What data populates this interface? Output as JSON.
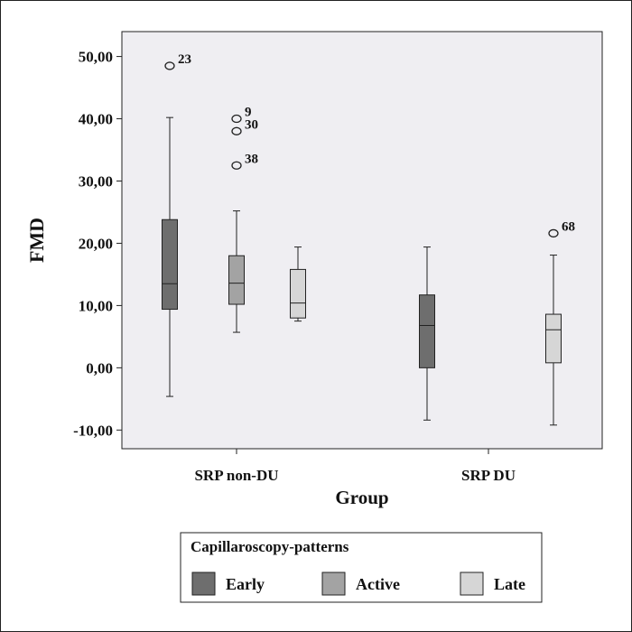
{
  "chart_data": {
    "type": "boxplot",
    "ylabel": "FMD",
    "xlabel": "Group",
    "ylim": [
      -13,
      54
    ],
    "yticks": [
      -10,
      0,
      10,
      20,
      30,
      40,
      50
    ],
    "ytick_labels": [
      "-10,00",
      "0,00",
      "10,00",
      "20,00",
      "30,00",
      "40,00",
      "50,00"
    ],
    "categories": [
      "SRP non-DU",
      "SRP DU"
    ],
    "legend": {
      "title": "Capillaroscopy-patterns",
      "placement": "bottom",
      "entries": [
        "Early",
        "Active",
        "Late"
      ]
    },
    "series": [
      {
        "name": "Early",
        "color": "#6e6e6e",
        "boxes": [
          {
            "whisker_low": -4.6,
            "q1": 9.4,
            "median": 13.5,
            "q3": 23.8,
            "whisker_high": 40.2,
            "outliers": [
              {
                "value": 48.5,
                "label": "23"
              }
            ]
          },
          {
            "whisker_low": -8.4,
            "q1": 0.0,
            "median": 6.8,
            "q3": 11.7,
            "whisker_high": 19.4,
            "outliers": []
          }
        ]
      },
      {
        "name": "Active",
        "color": "#a3a3a3",
        "boxes": [
          {
            "whisker_low": 5.7,
            "q1": 10.2,
            "median": 13.6,
            "q3": 18.0,
            "whisker_high": 25.2,
            "outliers": [
              {
                "value": 40.0,
                "label": "9"
              },
              {
                "value": 38.0,
                "label": "30"
              },
              {
                "value": 32.5,
                "label": "38"
              }
            ]
          },
          null
        ]
      },
      {
        "name": "Late",
        "color": "#d6d6d6",
        "boxes": [
          {
            "whisker_low": 7.5,
            "q1": 8.0,
            "median": 10.4,
            "q3": 15.8,
            "whisker_high": 19.4,
            "outliers": []
          },
          {
            "whisker_low": -9.2,
            "q1": 0.8,
            "median": 6.1,
            "q3": 8.6,
            "whisker_high": 18.1,
            "outliers": [
              {
                "value": 21.6,
                "label": "68"
              }
            ]
          }
        ]
      }
    ]
  }
}
